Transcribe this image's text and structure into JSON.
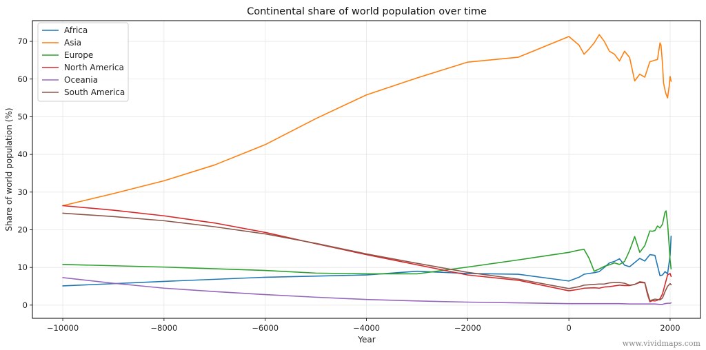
{
  "chart_data": {
    "type": "line",
    "title": "Continental share of world population over time",
    "xlabel": "Year",
    "ylabel": "Share of world population (%)",
    "xlim": [
      -10600,
      2600
    ],
    "ylim": [
      -3.5,
      75.5
    ],
    "xticks": [
      -10000,
      -8000,
      -6000,
      -4000,
      -2000,
      0,
      2000
    ],
    "xtick_labels": [
      "−10000",
      "−8000",
      "−6000",
      "−4000",
      "−2000",
      "0",
      "2000"
    ],
    "yticks": [
      0,
      10,
      20,
      30,
      40,
      50,
      60,
      70
    ],
    "ytick_labels": [
      "0",
      "10",
      "20",
      "30",
      "40",
      "50",
      "60",
      "70"
    ],
    "grid": true,
    "legend_position": "upper-left",
    "watermark": "www.vividmaps.com",
    "series": [
      {
        "name": "Africa",
        "color": "#1f77b4",
        "x": [
          -10000,
          -8000,
          -6000,
          -4000,
          -3000,
          -2000,
          -1000,
          0,
          200,
          300,
          500,
          600,
          700,
          800,
          900,
          1000,
          1100,
          1200,
          1300,
          1400,
          1500,
          1600,
          1700,
          1750,
          1800,
          1850,
          1900,
          1950,
          2000,
          2020
        ],
        "y": [
          5.1,
          6.3,
          7.4,
          8.0,
          9.0,
          8.4,
          8.2,
          6.4,
          7.4,
          8.2,
          8.6,
          8.9,
          10.0,
          11.2,
          11.6,
          12.3,
          10.6,
          10.2,
          11.3,
          12.4,
          11.7,
          13.4,
          13.2,
          10.5,
          7.8,
          8.0,
          8.9,
          8.3,
          13.2,
          18.3
        ]
      },
      {
        "name": "Asia",
        "color": "#ff7f0e",
        "x": [
          -10000,
          -9000,
          -8000,
          -7000,
          -6000,
          -5000,
          -4000,
          -3000,
          -2000,
          -1000,
          0,
          200,
          300,
          400,
          500,
          600,
          700,
          800,
          900,
          1000,
          1100,
          1200,
          1300,
          1400,
          1500,
          1600,
          1700,
          1750,
          1800,
          1820,
          1850,
          1870,
          1900,
          1920,
          1950,
          1980,
          2000,
          2020
        ],
        "y": [
          26.4,
          29.6,
          33.0,
          37.2,
          42.6,
          49.5,
          55.8,
          60.3,
          64.5,
          65.8,
          71.3,
          69.0,
          66.6,
          68.0,
          69.6,
          71.8,
          70.0,
          67.4,
          66.6,
          64.8,
          67.4,
          65.7,
          59.5,
          61.3,
          60.5,
          64.6,
          65.0,
          65.2,
          69.6,
          69.0,
          64.0,
          59.0,
          57.0,
          56.0,
          55.0,
          58.0,
          60.7,
          59.4
        ]
      },
      {
        "name": "Europe",
        "color": "#2ca02c",
        "x": [
          -10000,
          -8000,
          -6000,
          -5000,
          -4000,
          -3000,
          -2000,
          -1000,
          0,
          200,
          300,
          400,
          500,
          600,
          700,
          800,
          900,
          1000,
          1100,
          1200,
          1300,
          1400,
          1500,
          1600,
          1650,
          1700,
          1750,
          1800,
          1850,
          1900,
          1920,
          1950,
          1980,
          2000,
          2020
        ],
        "y": [
          10.8,
          10.1,
          9.2,
          8.5,
          8.3,
          8.3,
          10.1,
          12.0,
          14.0,
          14.6,
          14.8,
          12.4,
          9.0,
          9.6,
          10.3,
          10.7,
          11.2,
          10.8,
          11.6,
          14.5,
          18.2,
          14.0,
          15.8,
          19.7,
          19.6,
          19.8,
          21.0,
          20.5,
          21.5,
          24.7,
          25.0,
          21.7,
          16.0,
          12.0,
          9.6
        ]
      },
      {
        "name": "North America",
        "color": "#d62728",
        "x": [
          -10000,
          -9000,
          -8000,
          -7000,
          -6000,
          -5000,
          -4000,
          -3000,
          -2000,
          -1000,
          0,
          200,
          300,
          500,
          600,
          700,
          800,
          900,
          1000,
          1100,
          1200,
          1300,
          1400,
          1500,
          1550,
          1600,
          1650,
          1700,
          1750,
          1800,
          1850,
          1900,
          1950,
          2000,
          2020
        ],
        "y": [
          26.4,
          25.2,
          23.7,
          21.8,
          19.3,
          16.3,
          13.4,
          10.7,
          8.0,
          6.6,
          3.8,
          4.2,
          4.5,
          4.6,
          4.5,
          4.8,
          4.9,
          5.1,
          5.3,
          5.2,
          5.2,
          5.5,
          6.0,
          5.9,
          3.0,
          0.9,
          1.2,
          1.1,
          1.3,
          1.7,
          3.0,
          5.5,
          8.0,
          8.4,
          7.6
        ]
      },
      {
        "name": "Oceania",
        "color": "#9467bd",
        "x": [
          -10000,
          -9000,
          -8000,
          -7000,
          -6000,
          -5000,
          -4000,
          -3000,
          -2000,
          -1000,
          0,
          500,
          1000,
          1200,
          1500,
          1700,
          1800,
          1850,
          1900,
          1950,
          2000,
          2020
        ],
        "y": [
          7.3,
          5.8,
          4.5,
          3.6,
          2.8,
          2.1,
          1.5,
          1.1,
          0.8,
          0.6,
          0.4,
          0.4,
          0.4,
          0.3,
          0.3,
          0.3,
          0.2,
          0.2,
          0.4,
          0.5,
          0.5,
          0.6
        ]
      },
      {
        "name": "South America",
        "color": "#8c564b",
        "x": [
          -10000,
          -9000,
          -8000,
          -7000,
          -6000,
          -5000,
          -4000,
          -3000,
          -2000,
          -1000,
          0,
          200,
          300,
          400,
          500,
          600,
          700,
          800,
          900,
          1000,
          1100,
          1200,
          1300,
          1400,
          1500,
          1550,
          1600,
          1650,
          1700,
          1750,
          1800,
          1850,
          1900,
          1950,
          2000,
          2020
        ],
        "y": [
          24.4,
          23.5,
          22.4,
          20.8,
          18.9,
          16.4,
          13.6,
          11.1,
          8.7,
          6.9,
          4.4,
          4.9,
          5.3,
          5.4,
          5.5,
          5.6,
          5.6,
          5.9,
          6.0,
          6.0,
          5.8,
          5.3,
          5.5,
          6.2,
          6.0,
          3.5,
          1.2,
          1.4,
          1.6,
          1.5,
          1.4,
          1.9,
          3.6,
          5.0,
          5.7,
          5.4
        ]
      }
    ]
  }
}
